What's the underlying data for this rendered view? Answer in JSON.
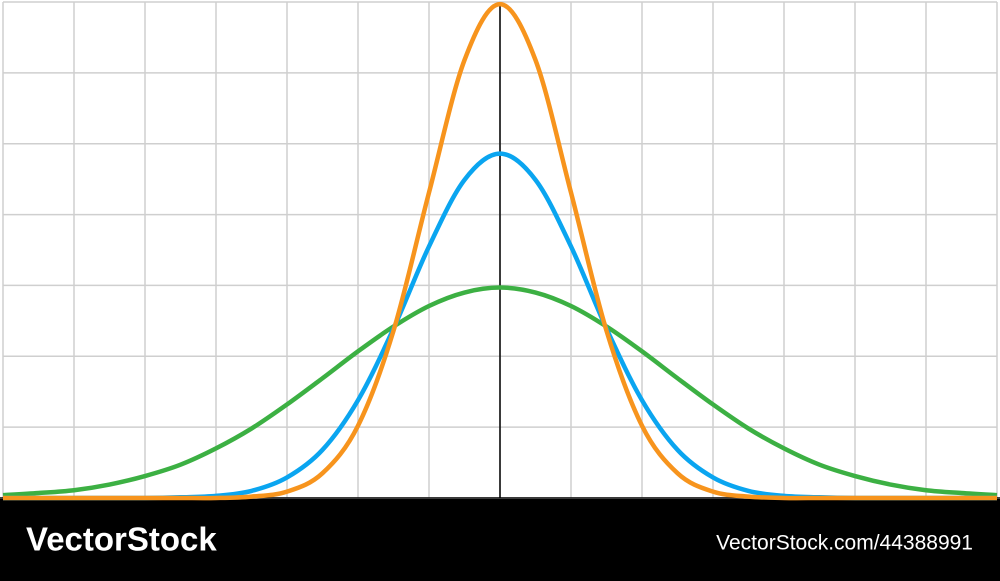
{
  "chart_data": {
    "type": "line",
    "x": [
      -7,
      -6.5,
      -6,
      -5.5,
      -5,
      -4.5,
      -4,
      -3.5,
      -3,
      -2.5,
      -2,
      -1.5,
      -1,
      -0.5,
      0,
      0.5,
      1,
      1.5,
      2,
      2.5,
      3,
      3.5,
      4,
      4.5,
      5,
      5.5,
      6,
      6.5,
      7
    ],
    "series": [
      {
        "color": "#3cb043",
        "values": [
          0.04,
          0.07,
          0.11,
          0.19,
          0.31,
          0.47,
          0.7,
          0.98,
          1.32,
          1.69,
          2.07,
          2.42,
          2.71,
          2.9,
          2.97,
          2.9,
          2.71,
          2.42,
          2.07,
          1.69,
          1.32,
          0.98,
          0.7,
          0.47,
          0.31,
          0.19,
          0.11,
          0.07,
          0.04
        ]
      },
      {
        "color": "#0aa5f0",
        "values": [
          0,
          0,
          0,
          0,
          0,
          0.01,
          0.03,
          0.1,
          0.29,
          0.68,
          1.38,
          2.39,
          3.55,
          4.49,
          4.86,
          4.49,
          3.55,
          2.39,
          1.38,
          0.68,
          0.29,
          0.1,
          0.03,
          0.01,
          0,
          0,
          0,
          0,
          0
        ]
      },
      {
        "color": "#f7941d",
        "values": [
          0,
          0,
          0,
          0,
          0,
          0,
          0,
          0.02,
          0.09,
          0.35,
          1.02,
          2.36,
          4.31,
          6.18,
          6.97,
          6.18,
          4.31,
          2.36,
          1.02,
          0.35,
          0.09,
          0.02,
          0,
          0,
          0,
          0,
          0,
          0,
          0
        ]
      }
    ],
    "xlim": [
      -7,
      7
    ],
    "ylim": [
      0,
      7
    ],
    "xticks": [
      -7,
      -6,
      -5,
      -4,
      -3,
      -2,
      -1,
      0,
      1,
      2,
      3,
      4,
      5,
      6,
      7
    ],
    "yticks": [
      0,
      1,
      2,
      3,
      4,
      5,
      6,
      7
    ],
    "grid": true
  },
  "footer": {
    "brand": "VectorStock",
    "id": "VectorStock.com/44388991"
  }
}
